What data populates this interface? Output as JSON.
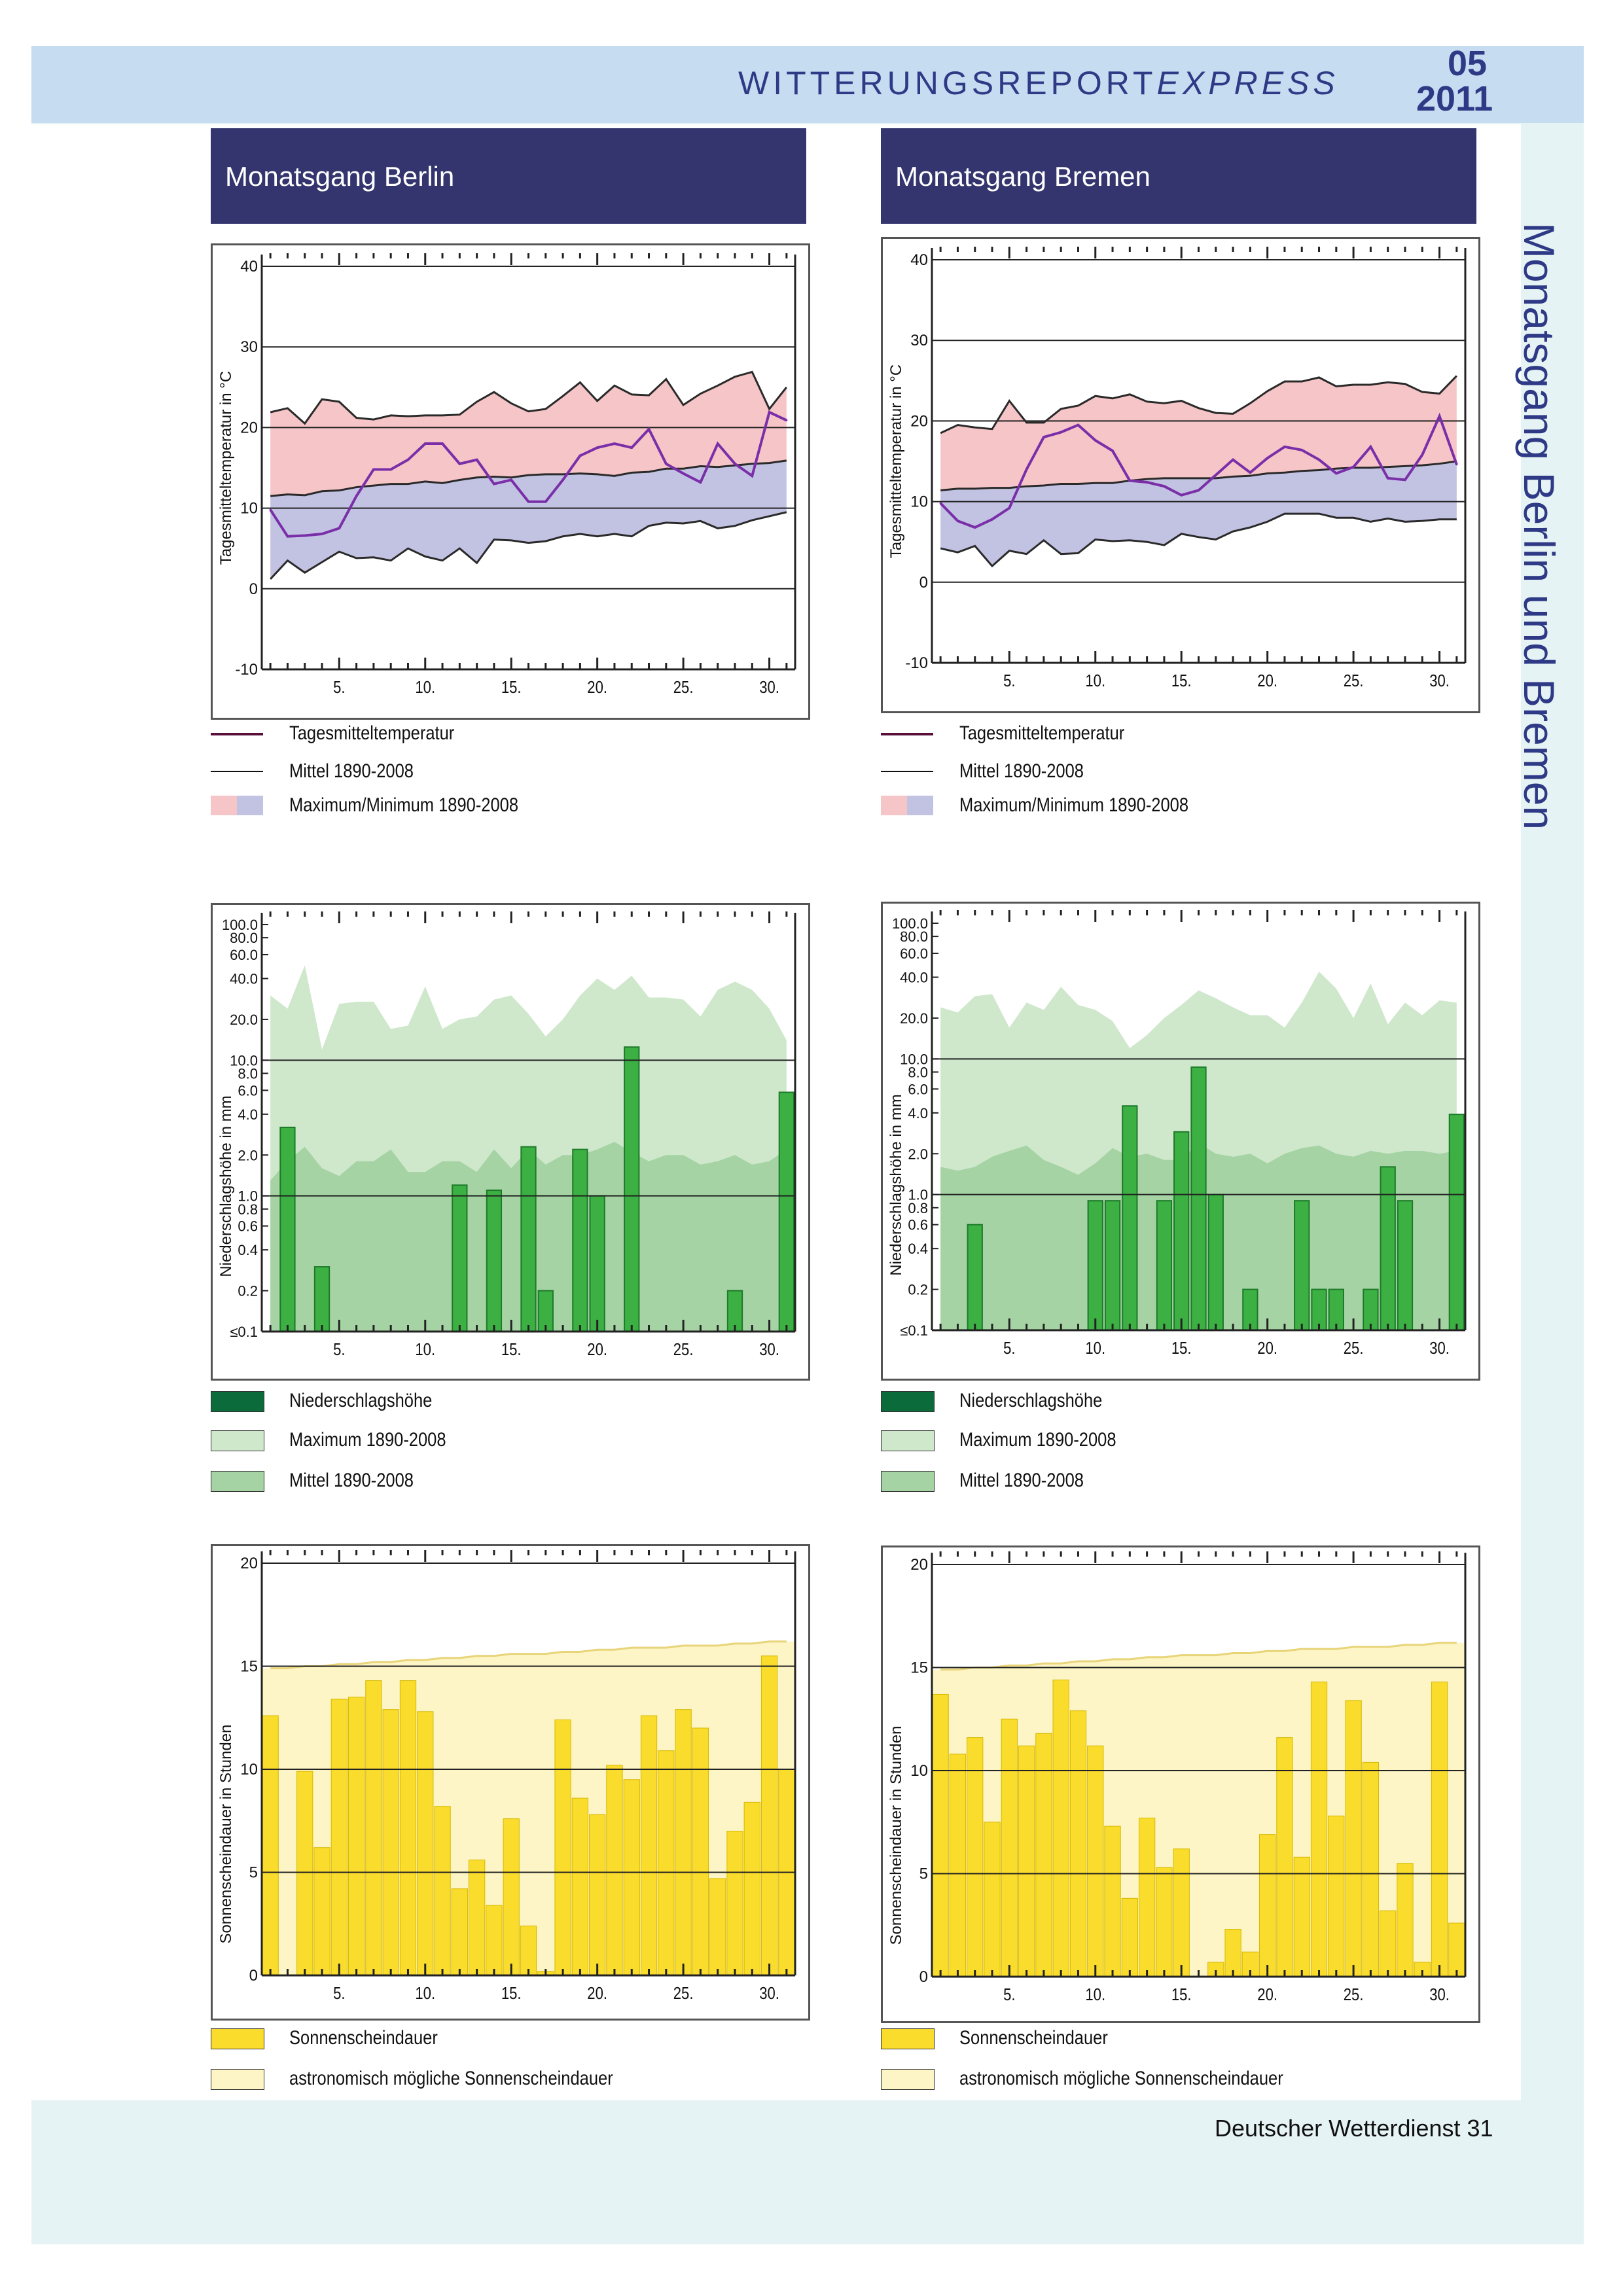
{
  "header": {
    "title_main": "WITTERUNGSREPORT",
    "title_express": "EXPRESS",
    "issue": "05",
    "year": "2011"
  },
  "side_title": "Monatsgang Berlin und Bremen",
  "footer": "Deutscher Wetterdienst  31",
  "panels": [
    {
      "title": "Monatsgang Berlin"
    },
    {
      "title": "Monatsgang Bremen"
    }
  ],
  "legends": {
    "temperature": [
      "Tagesmitteltemperatur",
      "Mittel 1890-2008",
      "Maximum/Minimum 1890-2008"
    ],
    "precipitation": [
      "Niederschlagshöhe",
      "Maximum 1890-2008",
      "Mittel 1890-2008"
    ],
    "sunshine": [
      "Sonnenscheindauer",
      "astronomisch mögliche Sonnenscheindauer"
    ]
  },
  "colors": {
    "temp_line": "#7a2fa8",
    "max_area": "#f6c5c8",
    "min_area": "#c2c3e3",
    "dark_line": "#2a2a2a",
    "precip_bar": "#3cb043",
    "precip_max": "#cfe8cc",
    "precip_mean": "#a5d3a3",
    "precip_legend_dark": "#0b6b3a",
    "sun_bar": "#f9dc2c",
    "sun_possible": "#fdf5c6",
    "legend_temp_line": "#5a0f3a"
  },
  "chart_data": [
    {
      "type": "line",
      "title": "Monatsgang Berlin",
      "ylabel": "Tagesmitteltemperatur in °C",
      "x": [
        1,
        2,
        3,
        4,
        5,
        6,
        7,
        8,
        9,
        10,
        11,
        12,
        13,
        14,
        15,
        16,
        17,
        18,
        19,
        20,
        21,
        22,
        23,
        24,
        25,
        26,
        27,
        28,
        29,
        30,
        31
      ],
      "xticks": [
        "5.",
        "10.",
        "15.",
        "20.",
        "25.",
        "30."
      ],
      "yticks": [
        "-10",
        "0",
        "10",
        "20",
        "30",
        "40"
      ],
      "ylim": [
        -10,
        40
      ],
      "series": [
        {
          "name": "Tagesmitteltemperatur",
          "values": [
            9.8,
            6.5,
            6.6,
            6.8,
            7.5,
            11.5,
            14.8,
            14.8,
            16,
            18,
            18,
            15.5,
            16,
            13,
            13.5,
            10.8,
            10.8,
            13.5,
            16.5,
            17.5,
            18,
            17.5,
            19.8,
            15.5,
            14.3,
            13.2,
            18,
            15.5,
            14,
            21.9,
            20.9
          ]
        },
        {
          "name": "Mittel 1890-2008",
          "values": [
            11.5,
            11.7,
            11.6,
            12.1,
            12.2,
            12.6,
            12.8,
            13,
            13,
            13.3,
            13.1,
            13.5,
            13.8,
            13.9,
            13.8,
            14.1,
            14.2,
            14.2,
            14.3,
            14.2,
            14,
            14.4,
            14.5,
            14.9,
            14.9,
            15.2,
            15.1,
            15.3,
            15.5,
            15.6,
            15.9
          ]
        },
        {
          "name": "Maximum 1890-2008",
          "values": [
            21.9,
            22.4,
            20.5,
            23.5,
            23.2,
            21.2,
            21,
            21.5,
            21.4,
            21.5,
            21.5,
            21.6,
            23.2,
            24.4,
            23,
            22,
            22.3,
            23.9,
            25.6,
            23.3,
            25.2,
            24.1,
            24,
            26,
            22.8,
            24.2,
            25.2,
            26.3,
            26.9,
            22.3,
            25
          ]
        },
        {
          "name": "Minimum 1890-2008",
          "values": [
            1.2,
            3.5,
            2,
            3.3,
            4.6,
            3.8,
            3.9,
            3.5,
            5,
            4,
            3.5,
            5,
            3.2,
            6.1,
            6,
            5.7,
            5.9,
            6.5,
            6.8,
            6.5,
            6.8,
            6.5,
            7.8,
            8.2,
            8.1,
            8.4,
            7.5,
            7.8,
            8.5,
            9,
            9.5
          ]
        }
      ]
    },
    {
      "type": "line",
      "title": "Monatsgang Bremen",
      "ylabel": "Tagesmitteltemperatur in °C",
      "x": [
        1,
        2,
        3,
        4,
        5,
        6,
        7,
        8,
        9,
        10,
        11,
        12,
        13,
        14,
        15,
        16,
        17,
        18,
        19,
        20,
        21,
        22,
        23,
        24,
        25,
        26,
        27,
        28,
        29,
        30,
        31
      ],
      "xticks": [
        "5.",
        "10.",
        "15.",
        "20.",
        "25.",
        "30."
      ],
      "yticks": [
        "-10",
        "0",
        "10",
        "20",
        "30",
        "40"
      ],
      "ylim": [
        -10,
        40
      ],
      "series": [
        {
          "name": "Tagesmitteltemperatur",
          "values": [
            9.8,
            7.6,
            6.8,
            7.8,
            9.2,
            14,
            18,
            18.6,
            19.5,
            17.6,
            16.3,
            12.6,
            12.4,
            11.9,
            10.8,
            11.4,
            13.3,
            15.2,
            13.6,
            15.4,
            16.8,
            16.4,
            15.2,
            13.5,
            14.3,
            16.8,
            12.9,
            12.7,
            15.8,
            20.6,
            14.6
          ]
        },
        {
          "name": "Mittel 1890-2008",
          "values": [
            11.4,
            11.6,
            11.6,
            11.7,
            11.7,
            11.9,
            12,
            12.2,
            12.2,
            12.3,
            12.3,
            12.6,
            12.8,
            12.9,
            12.9,
            12.9,
            12.9,
            13.1,
            13.2,
            13.5,
            13.6,
            13.8,
            13.9,
            14.1,
            14.2,
            14.2,
            14.3,
            14.4,
            14.5,
            14.7,
            15
          ]
        },
        {
          "name": "Maximum 1890-2008",
          "values": [
            18.5,
            19.5,
            19.2,
            19,
            22.5,
            19.8,
            19.8,
            21.5,
            21.9,
            23.1,
            22.8,
            23.3,
            22.4,
            22.2,
            22.5,
            21.6,
            21,
            20.9,
            22.2,
            23.7,
            24.9,
            24.9,
            25.4,
            24.3,
            24.5,
            24.5,
            24.8,
            24.6,
            23.6,
            23.4,
            25.6
          ]
        },
        {
          "name": "Minimum 1890-2008",
          "values": [
            4.2,
            3.7,
            4.5,
            2,
            3.9,
            3.5,
            5.2,
            3.5,
            3.6,
            5.3,
            5.1,
            5.2,
            5,
            4.6,
            6,
            5.6,
            5.3,
            6.3,
            6.8,
            7.5,
            8.5,
            8.5,
            8.5,
            8,
            8,
            7.5,
            7.9,
            7.5,
            7.6,
            7.8,
            7.8
          ]
        }
      ]
    },
    {
      "type": "bar",
      "title": "Monatsgang Berlin",
      "ylabel": "Niederschlagshöhe in mm",
      "yscale": "log",
      "yticks": [
        "≤0.1",
        "0.2",
        "0.4",
        "0.6",
        "0.8",
        "1.0",
        "2.0",
        "4.0",
        "6.0",
        "8.0",
        "10.0",
        "20.0",
        "40.0",
        "60.0",
        "80.0",
        "100.0"
      ],
      "xticks": [
        "5.",
        "10.",
        "15.",
        "20.",
        "25.",
        "30."
      ],
      "x": [
        1,
        2,
        3,
        4,
        5,
        6,
        7,
        8,
        9,
        10,
        11,
        12,
        13,
        14,
        15,
        16,
        17,
        18,
        19,
        20,
        21,
        22,
        23,
        24,
        25,
        26,
        27,
        28,
        29,
        30,
        31
      ],
      "series": [
        {
          "name": "Niederschlagshöhe",
          "values": [
            0,
            3.2,
            0,
            0.3,
            0,
            0,
            0,
            0,
            0,
            0,
            0,
            1.2,
            0,
            1.1,
            0,
            2.3,
            0.2,
            0,
            2.2,
            1,
            0,
            12.5,
            0,
            0,
            0,
            0,
            0,
            0.2,
            0,
            0,
            5.8
          ]
        },
        {
          "name": "Maximum 1890-2008",
          "values": [
            30,
            24,
            50,
            12,
            26,
            27,
            27,
            17,
            18,
            35,
            17,
            20,
            21,
            28,
            30,
            22,
            15,
            20,
            30,
            40,
            33,
            42,
            29,
            29,
            28,
            21,
            33,
            38,
            33,
            24,
            14
          ]
        },
        {
          "name": "Mittel 1890-2008",
          "values": [
            1.3,
            1.8,
            2.3,
            1.6,
            1.4,
            1.8,
            1.8,
            2.2,
            1.5,
            1.5,
            1.8,
            1.8,
            1.5,
            2.2,
            1.6,
            2.2,
            1.7,
            2,
            2,
            2.2,
            2.5,
            2.1,
            1.8,
            2,
            2,
            1.7,
            1.8,
            2,
            1.7,
            1.8,
            2.2
          ]
        }
      ]
    },
    {
      "type": "bar",
      "title": "Monatsgang Bremen",
      "ylabel": "Niederschlagshöhe in mm",
      "yscale": "log",
      "yticks": [
        "≤0.1",
        "0.2",
        "0.4",
        "0.6",
        "0.8",
        "1.0",
        "2.0",
        "4.0",
        "6.0",
        "8.0",
        "10.0",
        "20.0",
        "40.0",
        "60.0",
        "80.0",
        "100.0"
      ],
      "xticks": [
        "5.",
        "10.",
        "15.",
        "20.",
        "25.",
        "30."
      ],
      "x": [
        1,
        2,
        3,
        4,
        5,
        6,
        7,
        8,
        9,
        10,
        11,
        12,
        13,
        14,
        15,
        16,
        17,
        18,
        19,
        20,
        21,
        22,
        23,
        24,
        25,
        26,
        27,
        28,
        29,
        30,
        31
      ],
      "series": [
        {
          "name": "Niederschlagshöhe",
          "values": [
            0,
            0,
            0.6,
            0,
            0,
            0,
            0,
            0,
            0,
            0.9,
            0.9,
            4.5,
            0,
            0.9,
            2.9,
            8.7,
            1,
            0,
            0.2,
            0,
            0,
            0.9,
            0.2,
            0.2,
            0,
            0.2,
            1.6,
            0.9,
            0,
            0,
            3.9
          ]
        },
        {
          "name": "Maximum 1890-2008",
          "values": [
            24,
            22,
            29,
            30,
            17,
            26,
            23,
            34,
            25,
            23,
            19,
            12,
            15,
            20,
            25,
            32,
            28,
            24,
            21,
            21,
            17,
            26,
            44,
            33,
            20,
            36,
            18,
            26,
            21,
            27,
            26
          ]
        },
        {
          "name": "Mittel 1890-2008",
          "values": [
            1.6,
            1.5,
            1.6,
            1.9,
            2.1,
            2.3,
            1.8,
            1.6,
            1.4,
            1.7,
            2.2,
            1.9,
            2,
            1.8,
            1.8,
            2.4,
            2,
            1.9,
            2,
            1.7,
            2,
            2.2,
            2.3,
            2,
            1.9,
            2.1,
            2,
            2.1,
            2.1,
            2,
            2.1
          ]
        }
      ]
    },
    {
      "type": "bar",
      "title": "Monatsgang Berlin",
      "ylabel": "Sonnenscheindauer in Stunden",
      "ylim": [
        0,
        20
      ],
      "yticks": [
        "0",
        "5",
        "10",
        "15",
        "20"
      ],
      "xticks": [
        "5.",
        "10.",
        "15.",
        "20.",
        "25.",
        "30."
      ],
      "x": [
        1,
        2,
        3,
        4,
        5,
        6,
        7,
        8,
        9,
        10,
        11,
        12,
        13,
        14,
        15,
        16,
        17,
        18,
        19,
        20,
        21,
        22,
        23,
        24,
        25,
        26,
        27,
        28,
        29,
        30,
        31
      ],
      "series": [
        {
          "name": "Sonnenscheindauer",
          "values": [
            12.6,
            0,
            9.9,
            6.2,
            13.4,
            13.5,
            14.3,
            12.9,
            14.3,
            12.8,
            8.2,
            4.2,
            5.6,
            3.4,
            7.6,
            2.4,
            0.2,
            12.4,
            8.6,
            7.8,
            10.2,
            9.5,
            12.6,
            10.9,
            12.9,
            12,
            4.7,
            7,
            8.4,
            15.5,
            10
          ]
        },
        {
          "name": "astronomisch mögliche Sonnenscheindauer",
          "values": [
            14.9,
            14.9,
            15,
            15,
            15.1,
            15.1,
            15.2,
            15.2,
            15.3,
            15.3,
            15.4,
            15.4,
            15.5,
            15.5,
            15.6,
            15.6,
            15.6,
            15.7,
            15.7,
            15.8,
            15.8,
            15.9,
            15.9,
            15.9,
            16,
            16,
            16,
            16.1,
            16.1,
            16.2,
            16.2
          ]
        }
      ]
    },
    {
      "type": "bar",
      "title": "Monatsgang Bremen",
      "ylabel": "Sonnenscheindauer in Stunden",
      "ylim": [
        0,
        20
      ],
      "yticks": [
        "0",
        "5",
        "10",
        "15",
        "20"
      ],
      "xticks": [
        "5.",
        "10.",
        "15.",
        "20.",
        "25.",
        "30."
      ],
      "x": [
        1,
        2,
        3,
        4,
        5,
        6,
        7,
        8,
        9,
        10,
        11,
        12,
        13,
        14,
        15,
        16,
        17,
        18,
        19,
        20,
        21,
        22,
        23,
        24,
        25,
        26,
        27,
        28,
        29,
        30,
        31
      ],
      "series": [
        {
          "name": "Sonnenscheindauer",
          "values": [
            13.7,
            10.8,
            11.6,
            7.5,
            12.5,
            11.2,
            11.8,
            14.4,
            12.9,
            11.2,
            7.3,
            3.8,
            7.7,
            5.3,
            6.2,
            0,
            0.7,
            2.3,
            1.2,
            6.9,
            11.6,
            5.8,
            14.3,
            7.8,
            13.4,
            10.4,
            3.2,
            5.5,
            0.7,
            14.3,
            2.6
          ]
        },
        {
          "name": "astronomisch mögliche Sonnenscheindauer",
          "values": [
            14.9,
            14.9,
            15,
            15,
            15.1,
            15.1,
            15.2,
            15.2,
            15.3,
            15.3,
            15.4,
            15.4,
            15.5,
            15.5,
            15.6,
            15.6,
            15.6,
            15.7,
            15.7,
            15.8,
            15.8,
            15.9,
            15.9,
            15.9,
            16,
            16,
            16,
            16.1,
            16.1,
            16.2,
            16.2
          ]
        }
      ]
    }
  ]
}
